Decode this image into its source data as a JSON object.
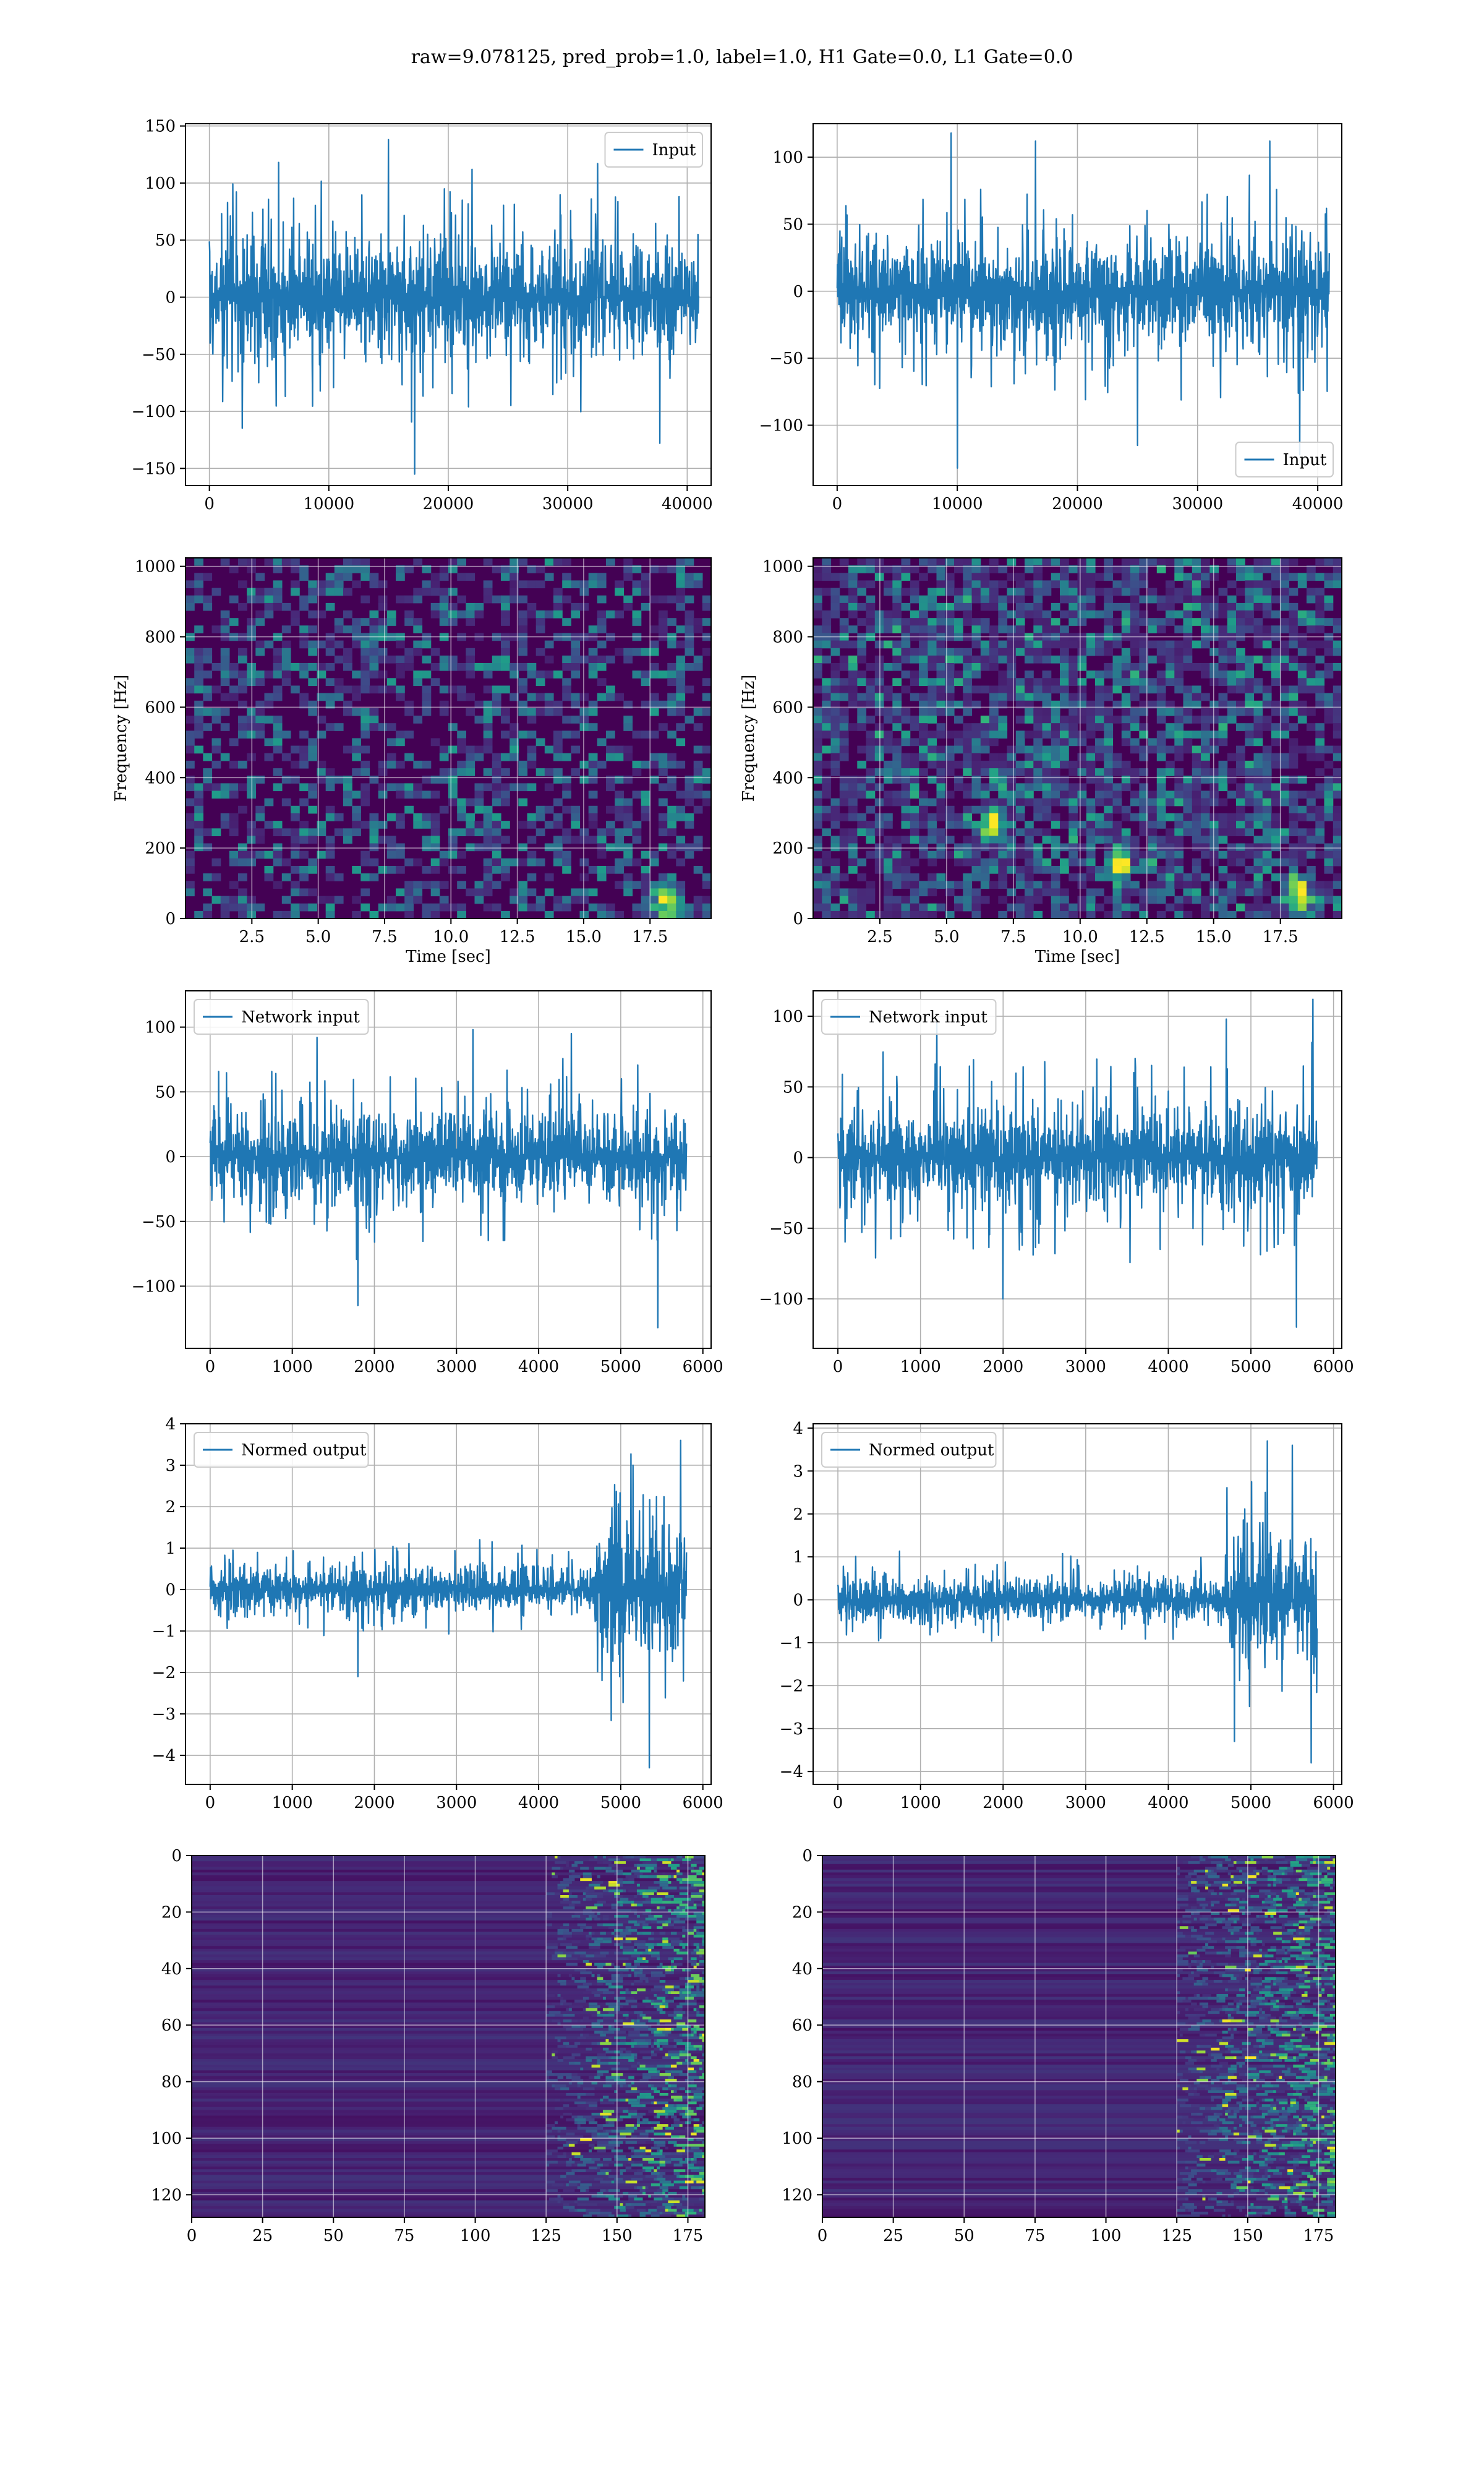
{
  "suptitle": "raw=9.078125, pred_prob=1.0, label=1.0, H1 Gate=0.0, L1 Gate=0.0",
  "colors": {
    "line": "#1f77b4",
    "grid": "#b0b0b0",
    "viridis_low": "#440154",
    "viridis_high": "#fde725"
  },
  "chart_data": [
    {
      "id": "input-h",
      "type": "line",
      "legend": "Input",
      "legend_loc": "upper right",
      "xlim": [
        -2000,
        42000
      ],
      "ylim": [
        -165,
        152
      ],
      "xticks": [
        0,
        10000,
        20000,
        30000,
        40000
      ],
      "yticks": [
        -150,
        -100,
        -50,
        0,
        50,
        100,
        150
      ],
      "xticklabels": [
        "0",
        "10000",
        "20000",
        "30000",
        "40000"
      ],
      "yticklabels": [
        "−150",
        "−100",
        "−50",
        "0",
        "50",
        "100",
        "150"
      ],
      "series": [
        {
          "x_range": [
            0,
            40960
          ],
          "envelope": [
            -55,
            55
          ],
          "peaks": [
            [
              5800,
              118
            ],
            [
              15000,
              138
            ],
            [
              17200,
              -155
            ],
            [
              22000,
              112
            ],
            [
              32500,
              117
            ],
            [
              37700,
              -128
            ]
          ]
        }
      ]
    },
    {
      "id": "input-l",
      "type": "line",
      "legend": "Input",
      "legend_loc": "lower right",
      "xlim": [
        -2000,
        42000
      ],
      "ylim": [
        -145,
        125
      ],
      "xticks": [
        0,
        10000,
        20000,
        30000,
        40000
      ],
      "yticks": [
        -100,
        -50,
        0,
        50,
        100
      ],
      "xticklabels": [
        "0",
        "10000",
        "20000",
        "30000",
        "40000"
      ],
      "yticklabels": [
        "−100",
        "−50",
        "0",
        "50",
        "100"
      ],
      "series": [
        {
          "x_range": [
            0,
            40960
          ],
          "envelope": [
            -45,
            45
          ],
          "peaks": [
            [
              9500,
              118
            ],
            [
              10000,
              -132
            ],
            [
              16500,
              112
            ],
            [
              25000,
              -115
            ],
            [
              36000,
              112
            ],
            [
              38500,
              -122
            ]
          ]
        }
      ]
    },
    {
      "id": "spec-h",
      "type": "heatmap",
      "xlabel": "Time [sec]",
      "ylabel": "Frequency [Hz]",
      "xlim": [
        0,
        19.8
      ],
      "ylim": [
        0,
        1024
      ],
      "xticks": [
        2.5,
        5.0,
        7.5,
        10.0,
        12.5,
        15.0,
        17.5
      ],
      "yticks": [
        0,
        200,
        400,
        600,
        800,
        1000
      ],
      "xticklabels": [
        "2.5",
        "5.0",
        "7.5",
        "10.0",
        "12.5",
        "15.0",
        "17.5"
      ],
      "yticklabels": [
        "0",
        "200",
        "400",
        "600",
        "800",
        "1000"
      ],
      "hotspots": [
        [
          18.1,
          60
        ]
      ]
    },
    {
      "id": "spec-l",
      "type": "heatmap",
      "xlabel": "Time [sec]",
      "ylabel": "Frequency [Hz]",
      "xlim": [
        0,
        19.8
      ],
      "ylim": [
        0,
        1024
      ],
      "xticks": [
        2.5,
        5.0,
        7.5,
        10.0,
        12.5,
        15.0,
        17.5
      ],
      "yticks": [
        0,
        200,
        400,
        600,
        800,
        1000
      ],
      "xticklabels": [
        "2.5",
        "5.0",
        "7.5",
        "10.0",
        "12.5",
        "15.0",
        "17.5"
      ],
      "yticklabels": [
        "0",
        "200",
        "400",
        "600",
        "800",
        "1000"
      ],
      "hotspots": [
        [
          18.2,
          60
        ],
        [
          6.8,
          270
        ],
        [
          11.5,
          160
        ]
      ]
    },
    {
      "id": "net-h",
      "type": "line",
      "legend": "Network input",
      "legend_loc": "upper left",
      "xlim": [
        -300,
        6100
      ],
      "ylim": [
        -148,
        128
      ],
      "xticks": [
        0,
        1000,
        2000,
        3000,
        4000,
        5000,
        6000
      ],
      "yticks": [
        -100,
        -50,
        0,
        50,
        100
      ],
      "xticklabels": [
        "0",
        "1000",
        "2000",
        "3000",
        "4000",
        "5000",
        "6000"
      ],
      "yticklabels": [
        "−100",
        "−50",
        "0",
        "50",
        "100"
      ],
      "series": [
        {
          "x_range": [
            0,
            5800
          ],
          "envelope": [
            -38,
            38
          ],
          "peaks": [
            [
              1300,
              92
            ],
            [
              1800,
              -115
            ],
            [
              3200,
              98
            ],
            [
              4400,
              95
            ],
            [
              5450,
              -132
            ]
          ]
        }
      ]
    },
    {
      "id": "net-l",
      "type": "line",
      "legend": "Network input",
      "legend_loc": "upper left",
      "xlim": [
        -300,
        6100
      ],
      "ylim": [
        -135,
        118
      ],
      "xticks": [
        0,
        1000,
        2000,
        3000,
        4000,
        5000,
        6000
      ],
      "yticks": [
        -100,
        -50,
        0,
        50,
        100
      ],
      "xticklabels": [
        "0",
        "1000",
        "2000",
        "3000",
        "4000",
        "5000",
        "6000"
      ],
      "yticklabels": [
        "−100",
        "−50",
        "0",
        "50",
        "100"
      ],
      "series": [
        {
          "x_range": [
            0,
            5800
          ],
          "envelope": [
            -38,
            38
          ],
          "peaks": [
            [
              1200,
              95
            ],
            [
              2000,
              -100
            ],
            [
              4700,
              98
            ],
            [
              5550,
              -120
            ],
            [
              5750,
              112
            ]
          ]
        }
      ]
    },
    {
      "id": "norm-h",
      "type": "line",
      "legend": "Normed output",
      "legend_loc": "upper left",
      "xlim": [
        -300,
        6100
      ],
      "ylim": [
        -4.7,
        4.0
      ],
      "xticks": [
        0,
        1000,
        2000,
        3000,
        4000,
        5000,
        6000
      ],
      "yticks": [
        -4,
        -3,
        -2,
        -1,
        0,
        1,
        2,
        3,
        4
      ],
      "xticklabels": [
        "0",
        "1000",
        "2000",
        "3000",
        "4000",
        "5000",
        "6000"
      ],
      "yticklabels": [
        "−4",
        "−3",
        "−2",
        "−1",
        "0",
        "1",
        "2",
        "3",
        "4"
      ],
      "series": [
        {
          "x_range": [
            0,
            5800
          ],
          "envelope": [
            -0.6,
            0.6
          ],
          "burst_start": 4700,
          "burst_envelope": [
            -1.6,
            1.6
          ],
          "peaks": [
            [
              1800,
              -2.1
            ],
            [
              5350,
              -4.3
            ],
            [
              5730,
              3.6
            ],
            [
              5150,
              3.0
            ]
          ]
        }
      ]
    },
    {
      "id": "norm-l",
      "type": "line",
      "legend": "Normed output",
      "legend_loc": "upper left",
      "xlim": [
        -300,
        6100
      ],
      "ylim": [
        -4.3,
        4.1
      ],
      "xticks": [
        0,
        1000,
        2000,
        3000,
        4000,
        5000,
        6000
      ],
      "yticks": [
        -4,
        -3,
        -2,
        -1,
        0,
        1,
        2,
        3,
        4
      ],
      "xticklabels": [
        "0",
        "1000",
        "2000",
        "3000",
        "4000",
        "5000",
        "6000"
      ],
      "yticklabels": [
        "−4",
        "−3",
        "−2",
        "−1",
        "0",
        "1",
        "2",
        "3",
        "4"
      ],
      "series": [
        {
          "x_range": [
            0,
            5800
          ],
          "envelope": [
            -0.55,
            0.55
          ],
          "burst_start": 4700,
          "burst_envelope": [
            -1.5,
            1.5
          ],
          "peaks": [
            [
              5200,
              3.7
            ],
            [
              5730,
              -3.8
            ],
            [
              5500,
              3.6
            ],
            [
              4800,
              -3.3
            ]
          ]
        }
      ]
    },
    {
      "id": "feat-h",
      "type": "heatmap",
      "xlim": [
        0,
        181
      ],
      "ylim": [
        128,
        0
      ],
      "xticks": [
        0,
        25,
        50,
        75,
        100,
        125,
        150,
        175
      ],
      "yticks": [
        0,
        20,
        40,
        60,
        80,
        100,
        120
      ],
      "xticklabels": [
        "0",
        "25",
        "50",
        "75",
        "100",
        "125",
        "150",
        "175"
      ],
      "yticklabels": [
        "0",
        "20",
        "40",
        "60",
        "80",
        "100",
        "120"
      ],
      "active_from": 125
    },
    {
      "id": "feat-l",
      "type": "heatmap",
      "xlim": [
        0,
        181
      ],
      "ylim": [
        128,
        0
      ],
      "xticks": [
        0,
        25,
        50,
        75,
        100,
        125,
        150,
        175
      ],
      "yticks": [
        0,
        20,
        40,
        60,
        80,
        100,
        120
      ],
      "xticklabels": [
        "0",
        "25",
        "50",
        "75",
        "100",
        "125",
        "150",
        "175"
      ],
      "yticklabels": [
        "0",
        "20",
        "40",
        "60",
        "80",
        "100",
        "120"
      ],
      "active_from": 125
    }
  ]
}
